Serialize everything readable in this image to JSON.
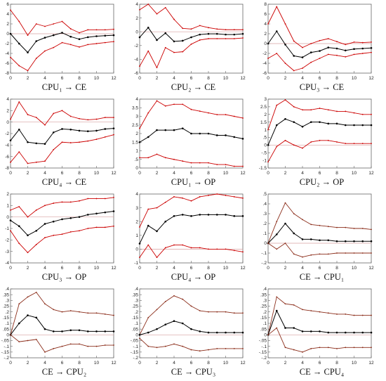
{
  "colors": {
    "center": "#000000",
    "band": "#cc0000",
    "band_brown": "#8b2d1a",
    "zero": "#d8a0a0",
    "frame": "#666666"
  },
  "chart_data": [
    {
      "type": "line",
      "title": "CPU₁ → CE",
      "x": [
        0,
        1,
        2,
        3,
        4,
        5,
        6,
        7,
        8,
        9,
        10,
        11,
        12
      ],
      "xticks": [
        0,
        2,
        4,
        6,
        8,
        10,
        12
      ],
      "ylim": [
        -8,
        6
      ],
      "yticks": [
        -8,
        -6,
        -4,
        -2,
        0,
        2,
        4,
        6
      ],
      "series": [
        {
          "role": "upper",
          "values": [
            4.8,
            2.5,
            -0.3,
            2.0,
            1.5,
            2.0,
            2.5,
            1.0,
            0.2,
            0.8,
            0.8,
            0.8,
            0.9
          ]
        },
        {
          "role": "irf",
          "values": [
            0.0,
            -2.0,
            -3.8,
            -1.5,
            -0.8,
            -0.3,
            0.2,
            -0.6,
            -1.1,
            -0.7,
            -0.5,
            -0.4,
            -0.3
          ]
        },
        {
          "role": "lower",
          "values": [
            -4.8,
            -6.5,
            -7.5,
            -5.0,
            -3.5,
            -2.8,
            -1.8,
            -2.2,
            -2.7,
            -2.2,
            -2.0,
            -1.8,
            -1.6
          ]
        }
      ]
    },
    {
      "type": "line",
      "title": "CPU₂ → CE",
      "x": [
        0,
        1,
        2,
        3,
        4,
        5,
        6,
        7,
        8,
        9,
        10,
        11,
        12
      ],
      "xticks": [
        0,
        2,
        4,
        6,
        8,
        10,
        12
      ],
      "ylim": [
        -6,
        4
      ],
      "yticks": [
        -6,
        -4,
        -2,
        0,
        2,
        4
      ],
      "series": [
        {
          "role": "upper",
          "values": [
            3.2,
            4.0,
            2.6,
            3.5,
            1.8,
            0.5,
            0.4,
            0.9,
            0.6,
            0.4,
            0.3,
            0.3,
            0.3
          ]
        },
        {
          "role": "irf",
          "values": [
            -0.8,
            0.6,
            -1.2,
            -0.2,
            -1.4,
            -1.3,
            -0.8,
            -0.4,
            -0.3,
            -0.3,
            -0.4,
            -0.4,
            -0.3
          ]
        },
        {
          "role": "lower",
          "values": [
            -5.0,
            -2.8,
            -5.2,
            -2.3,
            -3.0,
            -2.9,
            -1.8,
            -1.2,
            -1.0,
            -1.0,
            -1.0,
            -1.0,
            -0.9
          ]
        }
      ]
    },
    {
      "type": "line",
      "title": "CPU₃ → CE",
      "x": [
        0,
        1,
        2,
        3,
        4,
        5,
        6,
        7,
        8,
        9,
        10,
        11,
        12
      ],
      "xticks": [
        0,
        2,
        4,
        6,
        8,
        10,
        12
      ],
      "ylim": [
        -6,
        8
      ],
      "yticks": [
        -6,
        -4,
        -2,
        0,
        2,
        4,
        6,
        8
      ],
      "series": [
        {
          "role": "upper",
          "values": [
            4.0,
            7.5,
            4.0,
            0.5,
            -0.8,
            0.0,
            0.6,
            1.0,
            0.4,
            -0.2,
            0.3,
            0.2,
            0.3
          ]
        },
        {
          "role": "irf",
          "values": [
            0.0,
            2.5,
            -0.2,
            -2.5,
            -2.8,
            -1.8,
            -1.5,
            -0.8,
            -1.0,
            -1.4,
            -1.1,
            -1.0,
            -0.9
          ]
        },
        {
          "role": "lower",
          "values": [
            -3.0,
            -2.0,
            -4.0,
            -5.5,
            -5.0,
            -3.8,
            -3.0,
            -2.2,
            -2.4,
            -2.7,
            -2.2,
            -2.0,
            -1.8
          ]
        }
      ]
    },
    {
      "type": "line",
      "title": "CPU₄ → CE",
      "x": [
        0,
        1,
        2,
        3,
        4,
        5,
        6,
        7,
        8,
        9,
        10,
        11,
        12
      ],
      "xticks": [
        0,
        2,
        4,
        6,
        8,
        10,
        12
      ],
      "ylim": [
        -8,
        4
      ],
      "yticks": [
        -8,
        -6,
        -4,
        -2,
        0,
        2,
        4
      ],
      "series": [
        {
          "role": "upper",
          "values": [
            0.5,
            3.5,
            1.3,
            0.8,
            -0.5,
            1.5,
            2.0,
            1.0,
            0.6,
            0.4,
            0.5,
            0.8,
            0.8
          ]
        },
        {
          "role": "irf",
          "values": [
            -3.2,
            -1.3,
            -3.5,
            -3.7,
            -3.8,
            -1.8,
            -1.2,
            -1.3,
            -1.5,
            -1.6,
            -1.5,
            -1.2,
            -1.1
          ]
        },
        {
          "role": "lower",
          "values": [
            -7.0,
            -5.2,
            -7.2,
            -7.0,
            -6.8,
            -4.8,
            -3.5,
            -3.6,
            -3.5,
            -3.3,
            -3.0,
            -2.6,
            -2.2
          ]
        }
      ]
    },
    {
      "type": "line",
      "title": "CPU₁ → OP",
      "x": [
        0,
        1,
        2,
        3,
        4,
        5,
        6,
        7,
        8,
        9,
        10,
        11,
        12
      ],
      "xticks": [
        0,
        2,
        4,
        6,
        8,
        10,
        12
      ],
      "ylim": [
        0,
        4
      ],
      "yticks": [
        0,
        0.5,
        1,
        1.5,
        2,
        2.5,
        3,
        3.5,
        4
      ],
      "series": [
        {
          "role": "upper",
          "values": [
            2.3,
            3.2,
            3.9,
            3.6,
            3.7,
            3.7,
            3.4,
            3.3,
            3.2,
            3.1,
            3.1,
            3.0,
            2.9
          ]
        },
        {
          "role": "irf",
          "values": [
            1.5,
            1.8,
            2.2,
            2.2,
            2.2,
            2.3,
            2.0,
            2.0,
            2.0,
            1.9,
            1.9,
            1.8,
            1.7
          ]
        },
        {
          "role": "lower",
          "values": [
            0.6,
            0.6,
            0.8,
            0.6,
            0.5,
            0.4,
            0.3,
            0.3,
            0.3,
            0.2,
            0.2,
            0.1,
            0.1
          ]
        }
      ]
    },
    {
      "type": "line",
      "title": "CPU₂ → OP",
      "x": [
        0,
        1,
        2,
        3,
        4,
        5,
        6,
        7,
        8,
        9,
        10,
        11,
        12
      ],
      "xticks": [
        0,
        2,
        4,
        6,
        8,
        10,
        12
      ],
      "ylim": [
        -1.5,
        3
      ],
      "yticks": [
        -1.5,
        -1,
        -0.5,
        0,
        0.5,
        1,
        1.5,
        2,
        2.5,
        3
      ],
      "series": [
        {
          "role": "upper",
          "values": [
            1.0,
            2.6,
            2.95,
            2.5,
            2.3,
            2.3,
            2.4,
            2.3,
            2.2,
            2.2,
            2.1,
            2.0,
            2.0
          ]
        },
        {
          "role": "irf",
          "values": [
            0.0,
            1.3,
            1.7,
            1.5,
            1.2,
            1.5,
            1.5,
            1.4,
            1.4,
            1.3,
            1.3,
            1.3,
            1.3
          ]
        },
        {
          "role": "lower",
          "values": [
            -1.1,
            -0.1,
            0.3,
            0.0,
            -0.2,
            0.2,
            0.3,
            0.3,
            0.2,
            0.1,
            0.1,
            0.1,
            0.1
          ]
        }
      ]
    },
    {
      "type": "line",
      "title": "CPU₃ → OP",
      "x": [
        0,
        1,
        2,
        3,
        4,
        5,
        6,
        7,
        8,
        9,
        10,
        11,
        12
      ],
      "xticks": [
        0,
        2,
        4,
        6,
        8,
        10,
        12
      ],
      "ylim": [
        -4,
        2
      ],
      "yticks": [
        -4,
        -3,
        -2,
        -1,
        0,
        1,
        2
      ],
      "series": [
        {
          "role": "upper",
          "values": [
            0.6,
            0.9,
            0.0,
            0.6,
            1.0,
            1.2,
            1.3,
            1.3,
            1.4,
            1.6,
            1.6,
            1.6,
            1.7
          ]
        },
        {
          "role": "irf",
          "values": [
            -0.3,
            -0.8,
            -1.6,
            -1.2,
            -0.6,
            -0.4,
            -0.2,
            -0.1,
            0.0,
            0.2,
            0.3,
            0.4,
            0.5
          ]
        },
        {
          "role": "lower",
          "values": [
            -1.2,
            -2.3,
            -3.1,
            -2.4,
            -1.8,
            -1.6,
            -1.5,
            -1.3,
            -1.2,
            -1.0,
            -0.9,
            -0.9,
            -0.8
          ]
        }
      ]
    },
    {
      "type": "line",
      "title": "CPU₄ → OP",
      "x": [
        0,
        1,
        2,
        3,
        4,
        5,
        6,
        7,
        8,
        9,
        10,
        11,
        12
      ],
      "xticks": [
        0,
        2,
        4,
        6,
        8,
        10,
        12
      ],
      "ylim": [
        -1,
        4
      ],
      "yticks": [
        -1,
        0,
        1,
        2,
        3,
        4
      ],
      "series": [
        {
          "role": "upper",
          "values": [
            1.6,
            2.9,
            3.0,
            3.4,
            3.8,
            3.7,
            3.5,
            3.8,
            3.9,
            4.0,
            3.9,
            3.8,
            3.7
          ]
        },
        {
          "role": "irf",
          "values": [
            0.4,
            1.7,
            1.3,
            2.0,
            2.4,
            2.5,
            2.4,
            2.5,
            2.5,
            2.5,
            2.5,
            2.4,
            2.4
          ]
        },
        {
          "role": "lower",
          "values": [
            -0.6,
            0.3,
            -0.6,
            0.1,
            0.3,
            0.3,
            0.1,
            0.1,
            0.0,
            0.0,
            0.0,
            -0.1,
            -0.2
          ]
        }
      ]
    },
    {
      "type": "line",
      "title": "CE → CPU₁",
      "x": [
        0,
        1,
        2,
        3,
        4,
        5,
        6,
        7,
        8,
        9,
        10,
        11,
        12
      ],
      "xticks": [
        0,
        2,
        4,
        6,
        8,
        10,
        12
      ],
      "ylim": [
        -0.2,
        0.5
      ],
      "yticks": [
        -0.2,
        -0.1,
        0,
        0.1,
        0.2,
        0.3,
        0.4,
        0.5
      ],
      "series": [
        {
          "role": "upper",
          "values": [
            0.0,
            0.22,
            0.41,
            0.3,
            0.24,
            0.19,
            0.18,
            0.17,
            0.16,
            0.16,
            0.15,
            0.15,
            0.14
          ]
        },
        {
          "role": "irf",
          "values": [
            0.0,
            0.09,
            0.2,
            0.1,
            0.04,
            0.04,
            0.03,
            0.03,
            0.02,
            0.02,
            0.02,
            0.02,
            0.02
          ]
        },
        {
          "role": "lower",
          "values": [
            0.0,
            -0.06,
            0.0,
            -0.11,
            -0.14,
            -0.12,
            -0.11,
            -0.11,
            -0.1,
            -0.1,
            -0.1,
            -0.1,
            -0.1
          ]
        }
      ]
    },
    {
      "type": "line",
      "title": "CE → CPU₂",
      "x": [
        0,
        1,
        2,
        3,
        4,
        5,
        6,
        7,
        8,
        9,
        10,
        11,
        12
      ],
      "xticks": [
        0,
        2,
        4,
        6,
        8,
        10,
        12
      ],
      "ylim": [
        -0.2,
        0.4
      ],
      "yticks": [
        -0.2,
        -0.15,
        -0.1,
        -0.05,
        0,
        0.05,
        0.1,
        0.15,
        0.2,
        0.25,
        0.3,
        0.35,
        0.4
      ],
      "series": [
        {
          "role": "upper",
          "values": [
            0.0,
            0.27,
            0.33,
            0.37,
            0.27,
            0.22,
            0.2,
            0.21,
            0.2,
            0.19,
            0.19,
            0.18,
            0.17
          ]
        },
        {
          "role": "irf",
          "values": [
            0.0,
            0.1,
            0.17,
            0.15,
            0.05,
            0.03,
            0.03,
            0.04,
            0.04,
            0.03,
            0.03,
            0.03,
            0.03
          ]
        },
        {
          "role": "lower",
          "values": [
            0.0,
            -0.06,
            -0.05,
            -0.04,
            -0.15,
            -0.12,
            -0.1,
            -0.08,
            -0.08,
            -0.1,
            -0.1,
            -0.09,
            -0.09
          ]
        }
      ]
    },
    {
      "type": "line",
      "title": "CE → CPU₃",
      "x": [
        0,
        1,
        2,
        3,
        4,
        5,
        6,
        7,
        8,
        9,
        10,
        11,
        12
      ],
      "xticks": [
        0,
        2,
        4,
        6,
        8,
        10,
        12
      ],
      "ylim": [
        -0.2,
        0.4
      ],
      "yticks": [
        -0.2,
        -0.15,
        -0.1,
        -0.05,
        0,
        0.05,
        0.1,
        0.15,
        0.2,
        0.25,
        0.3,
        0.35,
        0.4
      ],
      "series": [
        {
          "role": "upper",
          "values": [
            0.0,
            0.15,
            0.22,
            0.29,
            0.34,
            0.31,
            0.25,
            0.21,
            0.2,
            0.2,
            0.2,
            0.19,
            0.19
          ]
        },
        {
          "role": "irf",
          "values": [
            0.0,
            0.02,
            0.05,
            0.09,
            0.12,
            0.1,
            0.05,
            0.03,
            0.02,
            0.02,
            0.02,
            0.02,
            0.02
          ]
        },
        {
          "role": "lower",
          "values": [
            -0.03,
            -0.1,
            -0.11,
            -0.1,
            -0.08,
            -0.1,
            -0.13,
            -0.14,
            -0.13,
            -0.12,
            -0.12,
            -0.12,
            -0.12
          ]
        }
      ]
    },
    {
      "type": "line",
      "title": "CE → CPU₄",
      "x": [
        0,
        1,
        2,
        3,
        4,
        5,
        6,
        7,
        8,
        9,
        10,
        11,
        12
      ],
      "xticks": [
        0,
        2,
        4,
        6,
        8,
        10,
        12
      ],
      "ylim": [
        -0.2,
        0.4
      ],
      "yticks": [
        -0.2,
        -0.15,
        -0.1,
        -0.05,
        0,
        0.05,
        0.1,
        0.15,
        0.2,
        0.25,
        0.3,
        0.35,
        0.4
      ],
      "series": [
        {
          "role": "upper",
          "values": [
            0.0,
            0.33,
            0.27,
            0.26,
            0.22,
            0.21,
            0.2,
            0.19,
            0.18,
            0.18,
            0.17,
            0.17,
            0.17
          ]
        },
        {
          "role": "irf",
          "values": [
            0.0,
            0.21,
            0.06,
            0.06,
            0.03,
            0.03,
            0.03,
            0.02,
            0.02,
            0.02,
            0.02,
            0.02,
            0.02
          ]
        },
        {
          "role": "lower",
          "values": [
            0.0,
            0.06,
            -0.11,
            -0.13,
            -0.15,
            -0.12,
            -0.11,
            -0.11,
            -0.12,
            -0.11,
            -0.11,
            -0.11,
            -0.11
          ]
        }
      ]
    }
  ]
}
